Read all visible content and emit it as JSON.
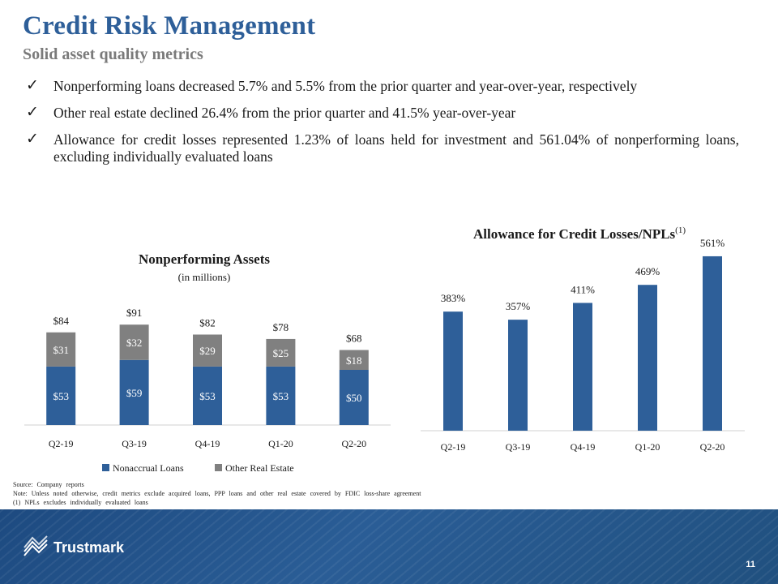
{
  "header": {
    "title": "Credit Risk Management",
    "subtitle": "Solid asset quality metrics"
  },
  "bullets": [
    "Nonperforming loans decreased 5.7% and 5.5% from the prior quarter and year-over-year, respectively",
    "Other real estate declined 26.4% from the prior quarter and 41.5% year-over-year",
    "Allowance for credit losses represented 1.23% of loans held for investment and 561.04% of nonperforming loans, excluding individually evaluated loans"
  ],
  "chart_data": [
    {
      "type": "bar",
      "stacked": true,
      "title": "Nonperforming Assets",
      "subtitle": "(in millions)",
      "categories": [
        "Q2-19",
        "Q3-19",
        "Q4-19",
        "Q1-20",
        "Q2-20"
      ],
      "series": [
        {
          "name": "Nonaccrual Loans",
          "values": [
            53,
            59,
            53,
            53,
            50
          ],
          "labels": [
            "$53",
            "$59",
            "$53",
            "$53",
            "$50"
          ],
          "color": "#2e5f99"
        },
        {
          "name": "Other Real Estate",
          "values": [
            31,
            32,
            29,
            25,
            18
          ],
          "labels": [
            "$31",
            "$32",
            "$29",
            "$25",
            "$18"
          ],
          "color": "#808080"
        }
      ],
      "totals": [
        "$84",
        "$91",
        "$82",
        "$78",
        "$68"
      ],
      "legend_position": "bottom",
      "ylim": [
        0,
        100
      ]
    },
    {
      "type": "bar",
      "title": "Allowance for Credit Losses/NPLs",
      "title_superscript": "(1)",
      "categories": [
        "Q2-19",
        "Q3-19",
        "Q4-19",
        "Q1-20",
        "Q2-20"
      ],
      "values": [
        383,
        357,
        411,
        469,
        561
      ],
      "labels": [
        "383%",
        "357%",
        "411%",
        "469%",
        "561%"
      ],
      "color": "#2e5f99",
      "ylim": [
        0,
        600
      ]
    }
  ],
  "notes": [
    "Source: Company reports",
    "Note: Unless noted otherwise, credit metrics exclude acquired loans, PPP loans and other real estate covered by FDIC loss-share agreement",
    "(1) NPLs excludes individually evaluated loans"
  ],
  "footer": {
    "logo_text": "Trustmark",
    "page_number": "11"
  }
}
